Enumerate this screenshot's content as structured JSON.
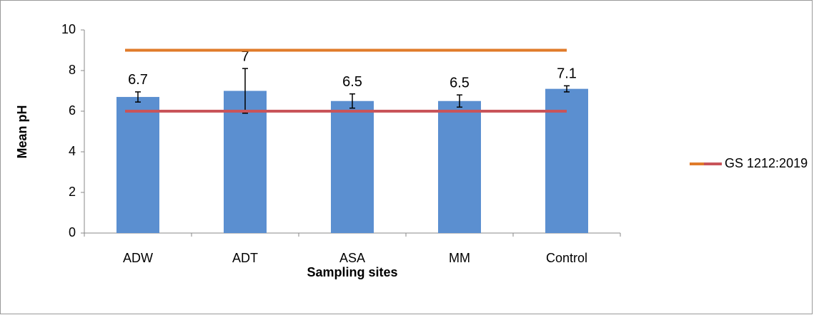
{
  "chart_data": {
    "type": "bar",
    "x_label": "Sampling sites",
    "y_label": "Mean pH",
    "categories": [
      "ADW",
      "ADT",
      "ASA",
      "MM",
      "Control"
    ],
    "values": [
      6.7,
      7,
      6.5,
      6.5,
      7.1
    ],
    "errors": [
      0.25,
      1.1,
      0.35,
      0.3,
      0.15
    ],
    "color": "#5b8fd0",
    "reference_lines": [
      {
        "value": 9,
        "color": "#e07b2a"
      },
      {
        "value": 6,
        "color": "#c9545a"
      }
    ],
    "legend_label": "GS 1212:2019",
    "ylim": [
      0,
      10
    ],
    "yticks": [
      0,
      2,
      4,
      6,
      8,
      10
    ]
  }
}
